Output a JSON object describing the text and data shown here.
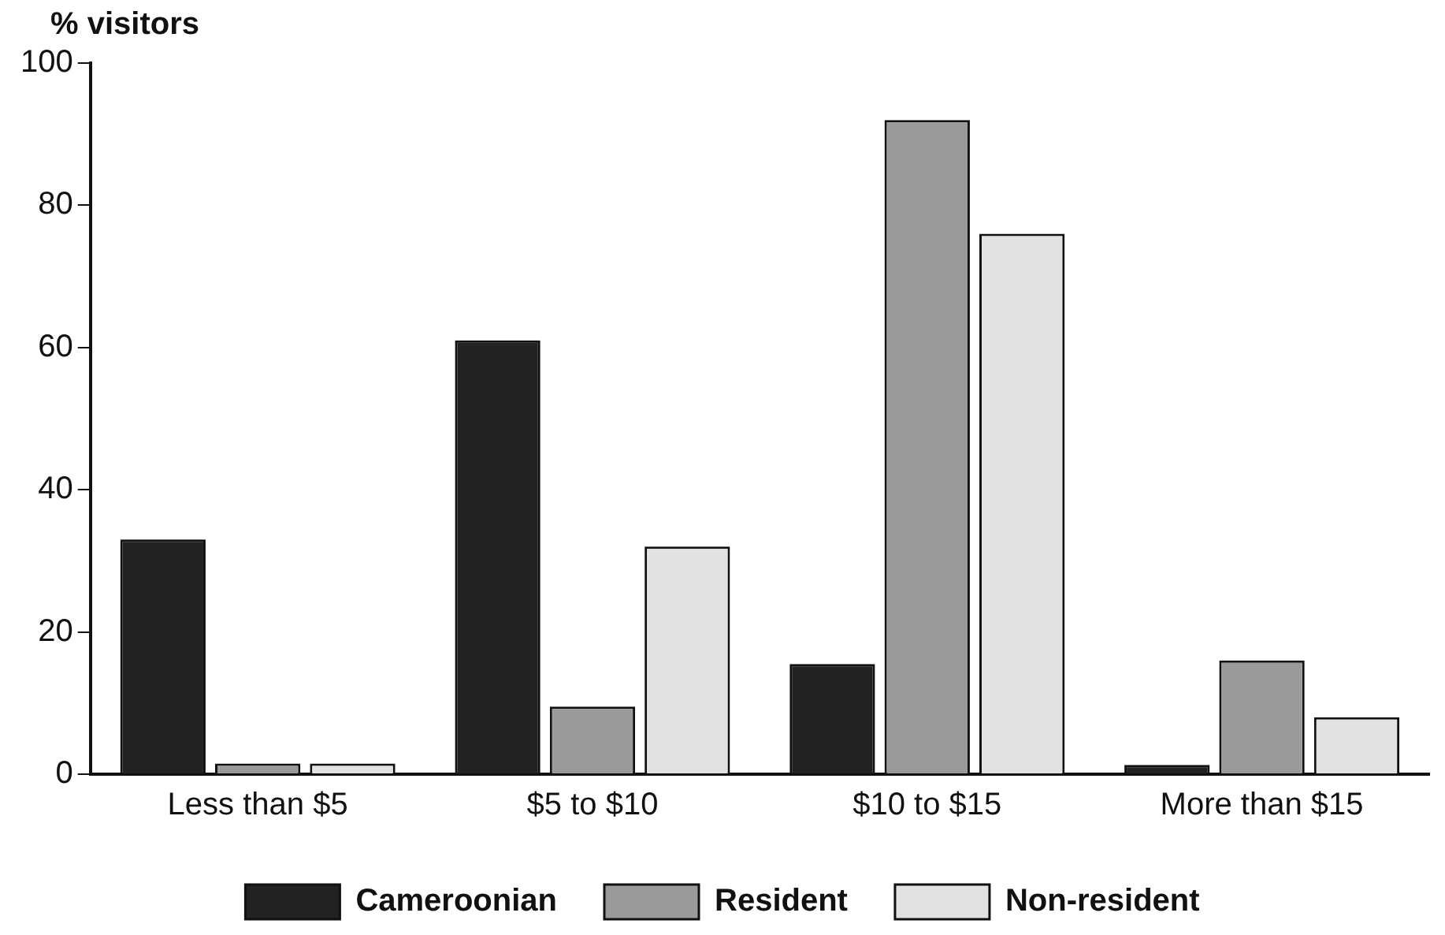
{
  "chart_data": {
    "type": "bar",
    "ylabel": "% visitors",
    "categories": [
      "Less than $5",
      "$5 to $10",
      "$10 to $15",
      "More than $15"
    ],
    "series": [
      {
        "name": "Cameroonian",
        "color": "#222222",
        "values": [
          33,
          61,
          15.5,
          1.3
        ]
      },
      {
        "name": "Resident",
        "color": "#9a9a9a",
        "values": [
          1.5,
          9.5,
          92,
          16
        ]
      },
      {
        "name": "Non-resident",
        "color": "#e2e2e2",
        "values": [
          1.5,
          32,
          76,
          8
        ]
      }
    ],
    "ylim": [
      0,
      100
    ],
    "yticks": [
      0,
      20,
      40,
      60,
      80,
      100
    ],
    "grid": false,
    "legend": "bottom"
  }
}
